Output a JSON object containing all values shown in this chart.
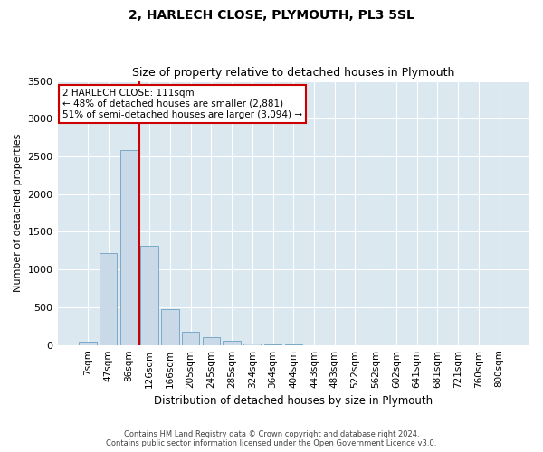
{
  "title": "2, HARLECH CLOSE, PLYMOUTH, PL3 5SL",
  "subtitle": "Size of property relative to detached houses in Plymouth",
  "xlabel": "Distribution of detached houses by size in Plymouth",
  "ylabel": "Number of detached properties",
  "categories": [
    "7sqm",
    "47sqm",
    "86sqm",
    "126sqm",
    "166sqm",
    "205sqm",
    "245sqm",
    "285sqm",
    "324sqm",
    "364sqm",
    "404sqm",
    "443sqm",
    "483sqm",
    "522sqm",
    "562sqm",
    "602sqm",
    "641sqm",
    "681sqm",
    "721sqm",
    "760sqm",
    "800sqm"
  ],
  "values": [
    50,
    1220,
    2580,
    1310,
    480,
    175,
    100,
    55,
    25,
    10,
    5,
    2,
    1,
    0,
    0,
    0,
    0,
    0,
    0,
    0,
    0
  ],
  "bar_color": "#c9d9e8",
  "bar_edge_color": "#7aaac8",
  "vline_color": "#cc0000",
  "vline_pos": 2.5,
  "annotation_text": "2 HARLECH CLOSE: 111sqm\n← 48% of detached houses are smaller (2,881)\n51% of semi-detached houses are larger (3,094) →",
  "annotation_box_color": "#ffffff",
  "annotation_box_edge": "#cc0000",
  "ylim": [
    0,
    3500
  ],
  "yticks": [
    0,
    500,
    1000,
    1500,
    2000,
    2500,
    3000,
    3500
  ],
  "fig_bg_color": "#ffffff",
  "ax_bg_color": "#dce8f0",
  "footer_line1": "Contains HM Land Registry data © Crown copyright and database right 2024.",
  "footer_line2": "Contains public sector information licensed under the Open Government Licence v3.0."
}
